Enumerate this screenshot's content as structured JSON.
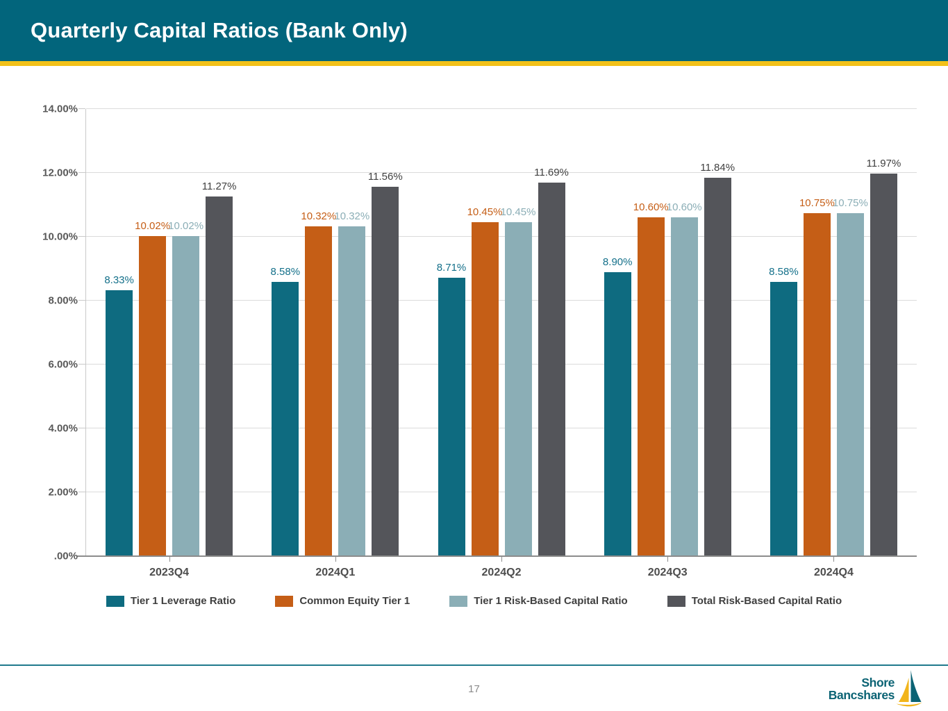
{
  "header": {
    "title": "Quarterly Capital Ratios (Bank Only)"
  },
  "chart_data": {
    "type": "bar",
    "title": "Quarterly Capital Ratios (Bank Only)",
    "categories": [
      "2023Q4",
      "2024Q1",
      "2024Q2",
      "2024Q3",
      "2024Q4"
    ],
    "series": [
      {
        "name": "Tier 1 Leverage Ratio",
        "color": "#0E6B80",
        "label_color": "#14708A",
        "values": [
          8.33,
          8.58,
          8.71,
          8.9,
          8.58
        ]
      },
      {
        "name": "Common Equity Tier 1",
        "color": "#C55E16",
        "label_color": "#C55E16",
        "values": [
          10.02,
          10.32,
          10.45,
          10.6,
          10.75
        ]
      },
      {
        "name": "Tier 1 Risk-Based Capital Ratio",
        "color": "#8BAEB6",
        "label_color": "#8BAEB6",
        "values": [
          10.02,
          10.32,
          10.45,
          10.6,
          10.75
        ]
      },
      {
        "name": "Total Risk-Based Capital Ratio",
        "color": "#54555A",
        "label_color": "#404040",
        "values": [
          11.27,
          11.56,
          11.69,
          11.84,
          11.97
        ]
      }
    ],
    "value_label_suffix": "%",
    "ylim": [
      0,
      14
    ],
    "y_ticks": [
      ".00%",
      "2.00%",
      "4.00%",
      "6.00%",
      "8.00%",
      "10.00%",
      "12.00%",
      "14.00%"
    ],
    "xlabel": "",
    "ylabel": "",
    "grid": true,
    "legend_position": "bottom"
  },
  "footer": {
    "page_number": "17",
    "logo": {
      "line1": "Shore",
      "line2": "Bancshares"
    }
  },
  "colors": {
    "header_background": "#02657C",
    "header_accent_rule": "#F2C119",
    "footer_rule": "#1F7A8C",
    "logo_teal": "#0B6374",
    "logo_gold": "#F2B51A"
  }
}
